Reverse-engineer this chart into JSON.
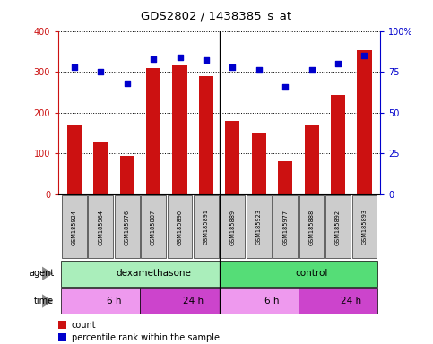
{
  "title": "GDS2802 / 1438385_s_at",
  "samples": [
    "GSM185924",
    "GSM185964",
    "GSM185976",
    "GSM185887",
    "GSM185890",
    "GSM185891",
    "GSM185889",
    "GSM185923",
    "GSM185977",
    "GSM185888",
    "GSM185892",
    "GSM185893"
  ],
  "counts": [
    170,
    130,
    95,
    310,
    315,
    290,
    180,
    148,
    82,
    168,
    243,
    352
  ],
  "percentiles": [
    78,
    75,
    68,
    83,
    84,
    82,
    78,
    76,
    66,
    76,
    80,
    85
  ],
  "ylim_left": [
    0,
    400
  ],
  "ylim_right": [
    0,
    100
  ],
  "yticks_left": [
    0,
    100,
    200,
    300,
    400
  ],
  "yticks_right": [
    0,
    25,
    50,
    75,
    100
  ],
  "yticklabels_right": [
    "0",
    "25",
    "50",
    "75",
    "100%"
  ],
  "bar_color": "#cc1111",
  "dot_color": "#0000cc",
  "agent_groups": [
    {
      "label": "dexamethasone",
      "start": 0,
      "end": 6,
      "color": "#aaeebb"
    },
    {
      "label": "control",
      "start": 6,
      "end": 12,
      "color": "#55dd77"
    }
  ],
  "time_groups": [
    {
      "label": "6 h",
      "start": 0,
      "end": 3,
      "color": "#ee99ee"
    },
    {
      "label": "24 h",
      "start": 3,
      "end": 6,
      "color": "#cc44cc"
    },
    {
      "label": "6 h",
      "start": 6,
      "end": 9,
      "color": "#ee99ee"
    },
    {
      "label": "24 h",
      "start": 9,
      "end": 12,
      "color": "#cc44cc"
    }
  ],
  "sample_bg": "#cccccc",
  "separator_x": 5.5,
  "n_samples": 12,
  "xlim": [
    -0.6,
    11.6
  ]
}
